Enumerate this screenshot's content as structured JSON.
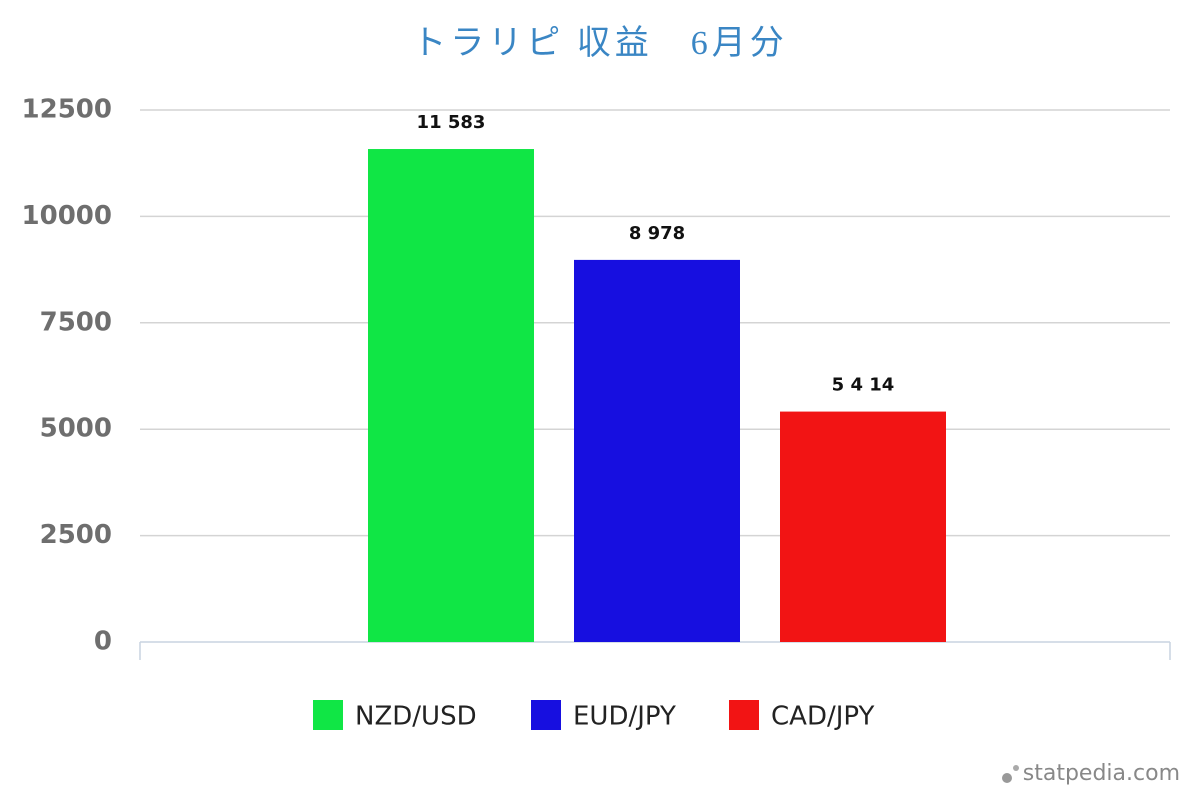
{
  "chart_data": {
    "type": "bar",
    "title": "トラリピ 収益　6月分",
    "categories": [
      null
    ],
    "series": [
      {
        "name": "NZD/USD",
        "color": "#10e645",
        "values": [
          11583
        ],
        "value_labels": [
          "11 583"
        ]
      },
      {
        "name": "EUD/JPY",
        "color": "#170fe0",
        "values": [
          8978
        ],
        "value_labels": [
          "8 978"
        ]
      },
      {
        "name": "CAD/JPY",
        "color": "#f21414",
        "values": [
          5414
        ],
        "value_labels": [
          "5 4 14"
        ]
      }
    ],
    "ylim": [
      0,
      12500
    ],
    "yticks": [
      0,
      2500,
      5000,
      7500,
      10000,
      12500
    ],
    "grid": true,
    "legend": "bottom",
    "watermark": "statpedia.com"
  }
}
